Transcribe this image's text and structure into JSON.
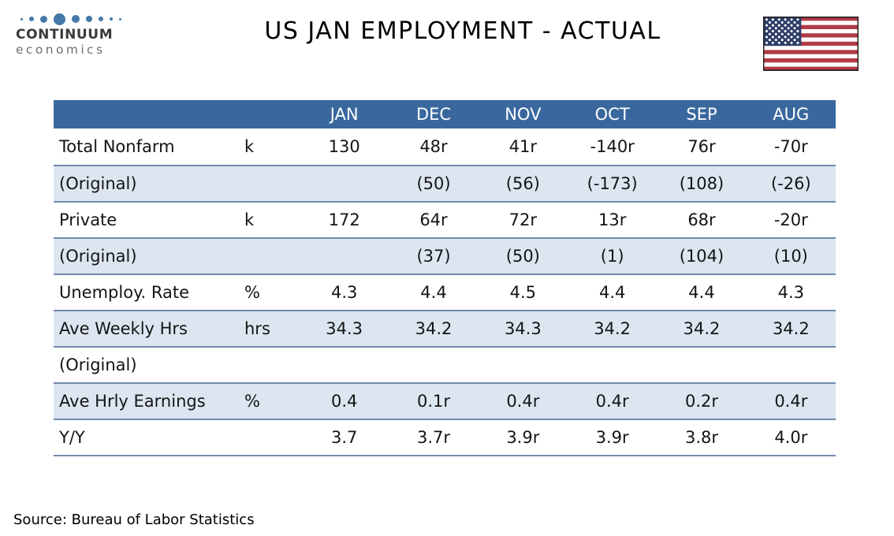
{
  "logo": {
    "name": "CONTINUUM",
    "subname": "economics",
    "dot_color": "#4478a8",
    "dot_sizes": [
      3,
      6,
      9,
      15,
      10,
      8,
      6,
      4,
      3
    ]
  },
  "header": {
    "title": "US JAN EMPLOYMENT - ACTUAL"
  },
  "flag": {
    "label": "us-flag",
    "red": "#b23b44",
    "navy": "#2e3e68",
    "white": "#ffffff",
    "border": "#1f1f1f"
  },
  "table": {
    "columns": [
      "",
      "",
      "JAN",
      "DEC",
      "NOV",
      "OCT",
      "SEP",
      "AUG"
    ],
    "rows": [
      {
        "label": "Total Nonfarm",
        "unit": "k",
        "values": [
          "130",
          "48r",
          "41r",
          "-140r",
          "76r",
          "-70r"
        ]
      },
      {
        "label": "(Original)",
        "unit": "",
        "values": [
          "",
          "(50)",
          "(56)",
          "(-173)",
          "(108)",
          "(-26)"
        ]
      },
      {
        "label": "Private",
        "unit": "k",
        "values": [
          "172",
          "64r",
          "72r",
          "13r",
          "68r",
          "-20r"
        ]
      },
      {
        "label": "(Original)",
        "unit": "",
        "values": [
          "",
          "(37)",
          "(50)",
          "(1)",
          "(104)",
          "(10)"
        ]
      },
      {
        "label": "Unemploy. Rate",
        "unit": "%",
        "values": [
          "4.3",
          "4.4",
          "4.5",
          "4.4",
          "4.4",
          "4.3"
        ]
      },
      {
        "label": "Ave Weekly Hrs",
        "unit": "hrs",
        "values": [
          "34.3",
          "34.2",
          "34.3",
          "34.2",
          "34.2",
          "34.2"
        ]
      },
      {
        "label": "(Original)",
        "unit": "",
        "values": [
          "",
          "",
          "",
          "",
          "",
          ""
        ]
      },
      {
        "label": "Ave Hrly Earnings",
        "unit": "%",
        "values": [
          "0.4",
          "0.1r",
          "0.4r",
          "0.4r",
          "0.2r",
          "0.4r"
        ]
      },
      {
        "label": "Y/Y",
        "unit": "",
        "values": [
          "3.7",
          "3.7r",
          "3.9r",
          "3.9r",
          "3.8r",
          "4.0r"
        ]
      }
    ],
    "colors": {
      "header_bg": "#3a689e",
      "header_text": "#ffffff",
      "band_bg": "#dce6f1",
      "row_bg": "#ffffff",
      "row_border": "#7289ab",
      "text": "#141414"
    }
  },
  "footer": {
    "source": "Source: Bureau of Labor Statistics"
  }
}
